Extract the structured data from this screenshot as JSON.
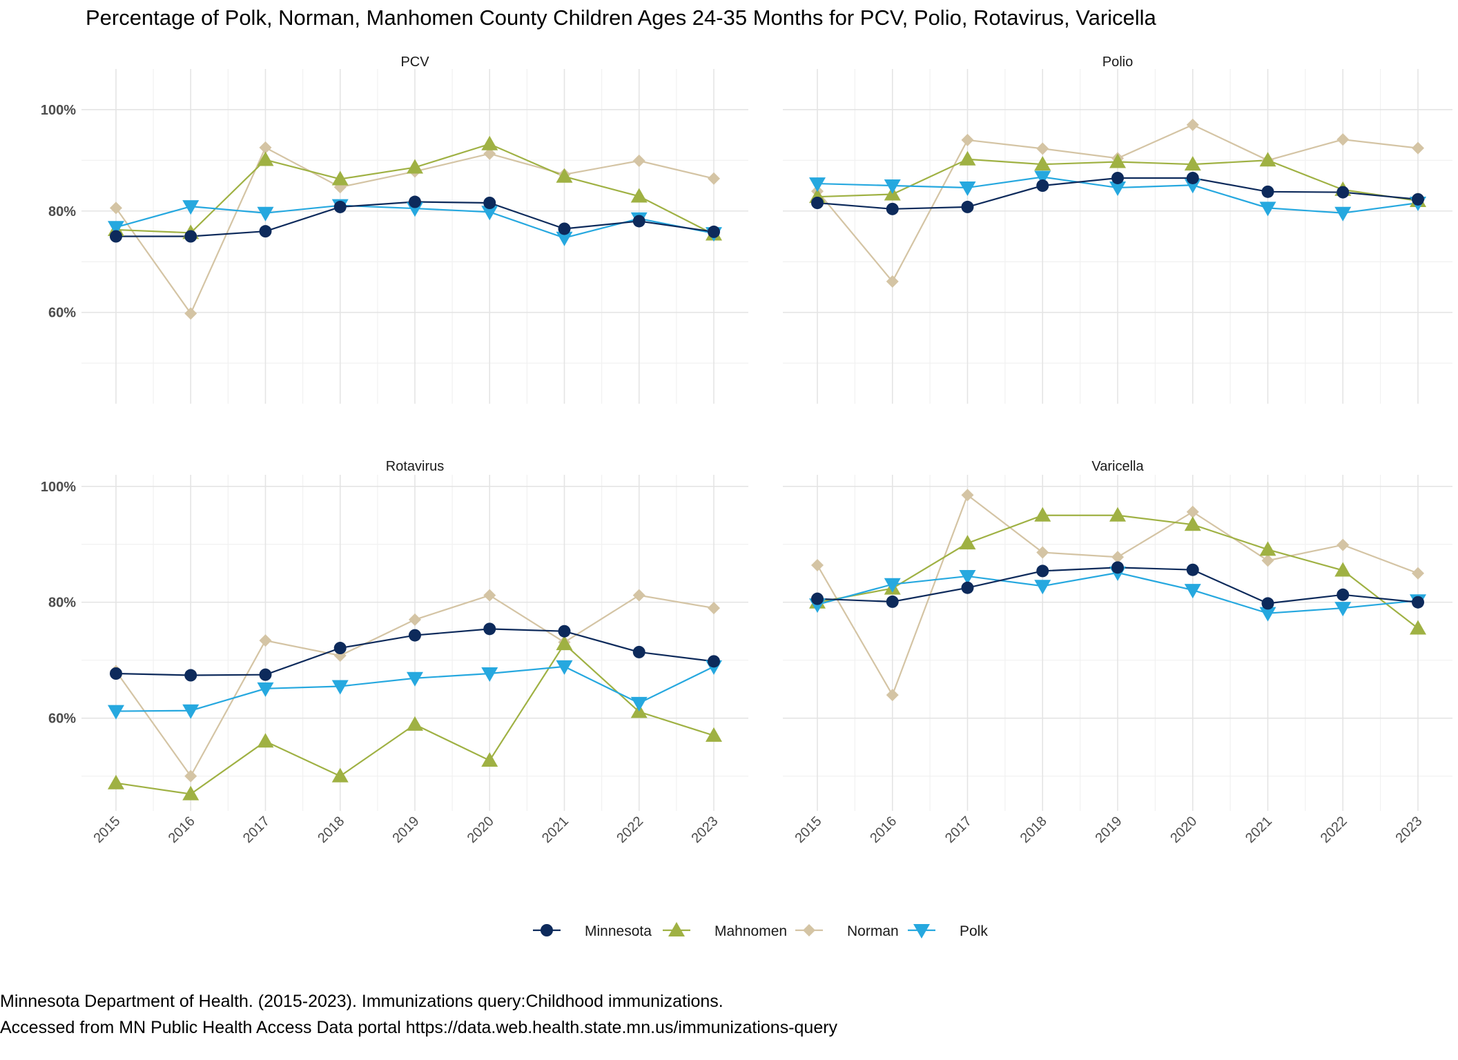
{
  "title": "Percentage of Polk, Norman, Manhomen County Children Ages 24-35 Months for PCV, Polio, Rotavirus, Varicella",
  "source_lines": [
    "Minnesota Department of Health. (2015-2023). Immunizations query:Childhood immunizations.",
    "Accessed from MN Public Health Access Data portal https://data.web.health.state.mn.us/immunizations-query"
  ],
  "chart_data": {
    "type": "line",
    "years": [
      "2015",
      "2016",
      "2017",
      "2018",
      "2019",
      "2020",
      "2021",
      "2022",
      "2023"
    ],
    "y_ticks": [
      {
        "value": 60,
        "label": "60%"
      },
      {
        "value": 80,
        "label": "80%"
      },
      {
        "value": 100,
        "label": "100%"
      }
    ],
    "grid": true,
    "legend_position": "bottom",
    "series_styles": [
      {
        "name": "Minnesota",
        "color": "#0d2a5b",
        "marker": "circle"
      },
      {
        "name": "Mahnomen",
        "color": "#9fb143",
        "marker": "triangle-up"
      },
      {
        "name": "Norman",
        "color": "#d4c4a4",
        "marker": "diamond"
      },
      {
        "name": "Polk",
        "color": "#26a8df",
        "marker": "triangle-down"
      }
    ],
    "panels": [
      {
        "name": "PCV",
        "ylim": [
          42,
          108
        ],
        "series": [
          {
            "name": "Minnesota",
            "values": [
              75.0,
              75.0,
              76.0,
              80.8,
              81.8,
              81.6,
              76.5,
              78.0,
              75.9
            ]
          },
          {
            "name": "Mahnomen",
            "values": [
              76.3,
              75.7,
              90.1,
              86.3,
              88.6,
              93.2,
              86.8,
              82.9,
              75.4
            ]
          },
          {
            "name": "Norman",
            "values": [
              80.6,
              59.8,
              92.5,
              84.7,
              87.8,
              91.3,
              87.2,
              89.9,
              86.4
            ]
          },
          {
            "name": "Polk",
            "values": [
              76.8,
              80.9,
              79.6,
              81.1,
              80.5,
              79.8,
              74.7,
              78.5,
              75.6
            ]
          }
        ]
      },
      {
        "name": "Polio",
        "ylim": [
          42,
          108
        ],
        "series": [
          {
            "name": "Minnesota",
            "values": [
              81.6,
              80.4,
              80.8,
              85.0,
              86.5,
              86.5,
              83.8,
              83.7,
              82.3
            ]
          },
          {
            "name": "Mahnomen",
            "values": [
              82.8,
              83.3,
              90.2,
              89.2,
              89.7,
              89.2,
              90.0,
              84.2,
              82.0
            ]
          },
          {
            "name": "Norman",
            "values": [
              83.9,
              66.1,
              94.0,
              92.3,
              90.4,
              97.0,
              90.0,
              94.1,
              92.4
            ]
          },
          {
            "name": "Polk",
            "values": [
              85.4,
              85.0,
              84.6,
              86.7,
              84.6,
              85.1,
              80.6,
              79.6,
              81.6
            ]
          }
        ]
      },
      {
        "name": "Rotavirus",
        "ylim": [
          44,
          102
        ],
        "series": [
          {
            "name": "Minnesota",
            "values": [
              67.7,
              67.4,
              67.5,
              72.1,
              74.3,
              75.4,
              75.0,
              71.4,
              69.8
            ]
          },
          {
            "name": "Mahnomen",
            "values": [
              48.8,
              46.9,
              56.0,
              50.0,
              58.9,
              52.7,
              72.8,
              61.1,
              57.0
            ]
          },
          {
            "name": "Norman",
            "values": [
              68.1,
              50.0,
              73.4,
              70.8,
              77.0,
              81.2,
              73.1,
              81.2,
              79.0
            ]
          },
          {
            "name": "Polk",
            "values": [
              61.2,
              61.3,
              65.1,
              65.5,
              66.9,
              67.7,
              68.9,
              62.6,
              68.9
            ]
          }
        ]
      },
      {
        "name": "Varicella",
        "ylim": [
          44,
          102
        ],
        "series": [
          {
            "name": "Minnesota",
            "values": [
              80.6,
              80.1,
              82.5,
              85.4,
              86.0,
              85.6,
              79.8,
              81.3,
              80.0
            ]
          },
          {
            "name": "Mahnomen",
            "values": [
              80.0,
              82.4,
              90.2,
              95.0,
              95.0,
              93.4,
              89.1,
              85.5,
              75.5
            ]
          },
          {
            "name": "Norman",
            "values": [
              86.4,
              64.0,
              98.5,
              88.6,
              87.8,
              95.6,
              87.2,
              89.9,
              85.0
            ]
          },
          {
            "name": "Polk",
            "values": [
              79.6,
              83.1,
              84.5,
              82.8,
              85.1,
              82.1,
              78.1,
              79.0,
              80.3
            ]
          }
        ]
      }
    ]
  }
}
